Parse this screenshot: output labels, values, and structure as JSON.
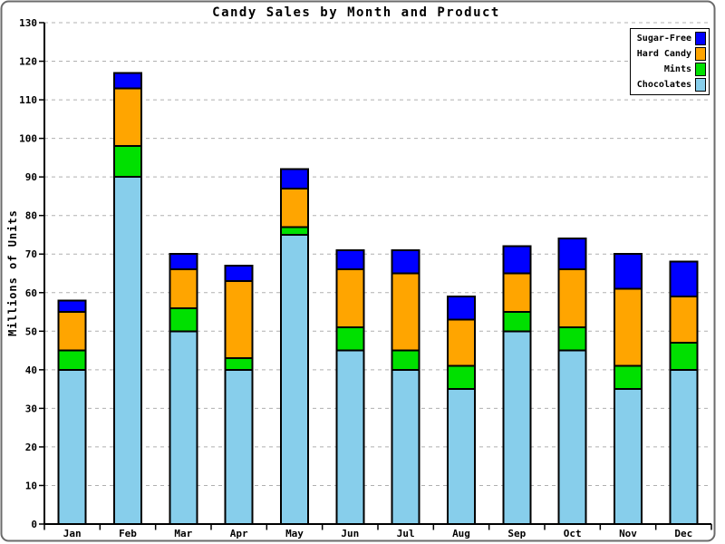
{
  "title": "Candy Sales by Month and Product",
  "y_axis": {
    "label": "Millions of Units",
    "min": 0,
    "max": 130,
    "tick_step": 10
  },
  "legend": {
    "position": "top-right",
    "items": [
      {
        "label": "Sugar-Free",
        "color": "#0000FF"
      },
      {
        "label": "Hard Candy",
        "color": "#FFA500"
      },
      {
        "label": "Mints",
        "color": "#00E000"
      },
      {
        "label": "Chocolates",
        "color": "#87CEEB"
      }
    ]
  },
  "colors": {
    "axis": "#000000",
    "gridline": "#b0b0b0",
    "frame": "#6b6b6b",
    "background": "#ffffff"
  },
  "chart_data": {
    "type": "bar",
    "stacked": true,
    "title": "Candy Sales by Month and Product",
    "xlabel": "",
    "ylabel": "Millions of Units",
    "ylim": [
      0,
      130
    ],
    "grid": "dashed horizontal every 10",
    "legend_position": "top-right",
    "categories": [
      "Jan",
      "Feb",
      "Mar",
      "Apr",
      "May",
      "Jun",
      "Jul",
      "Aug",
      "Sep",
      "Oct",
      "Nov",
      "Dec"
    ],
    "series": [
      {
        "name": "Chocolates",
        "color": "#87CEEB",
        "values": [
          40,
          90,
          50,
          40,
          75,
          45,
          40,
          35,
          50,
          45,
          35,
          40
        ]
      },
      {
        "name": "Mints",
        "color": "#00E000",
        "values": [
          5,
          8,
          6,
          3,
          2,
          6,
          5,
          6,
          5,
          6,
          6,
          7
        ]
      },
      {
        "name": "Hard Candy",
        "color": "#FFA500",
        "values": [
          10,
          15,
          10,
          20,
          10,
          15,
          20,
          12,
          10,
          15,
          20,
          12
        ]
      },
      {
        "name": "Sugar-Free",
        "color": "#0000FF",
        "values": [
          3,
          4,
          4,
          4,
          5,
          5,
          6,
          6,
          7,
          8,
          9,
          9
        ]
      }
    ],
    "stack_totals": [
      58,
      117,
      70,
      67,
      92,
      71,
      71,
      59,
      72,
      74,
      70,
      68
    ]
  }
}
